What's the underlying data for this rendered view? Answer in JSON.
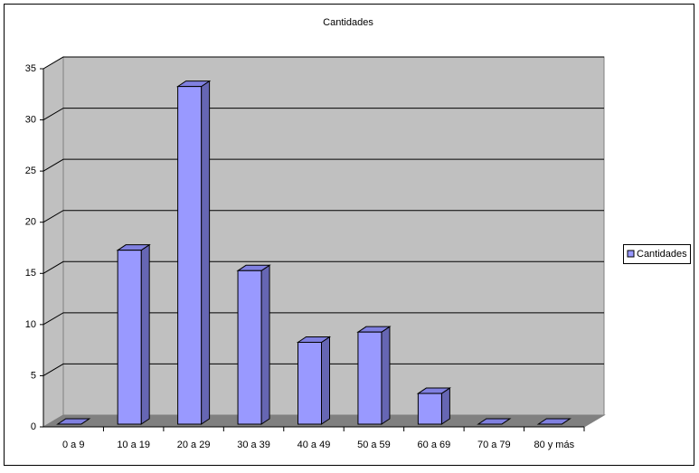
{
  "chart_data": {
    "type": "bar",
    "title": "Cantidades",
    "categories": [
      "0 a 9",
      "10 a 19",
      "20 a 29",
      "30 a 39",
      "40 a 49",
      "50 a 59",
      "60 a 69",
      "70 a 79",
      "80 y más"
    ],
    "series": [
      {
        "name": "Cantidades",
        "color": "#9999ff",
        "values": [
          0,
          17,
          33,
          15,
          8,
          9,
          3,
          0,
          0
        ]
      }
    ],
    "ylim": [
      0,
      35
    ],
    "yticks": [
      0,
      5,
      10,
      15,
      20,
      25,
      30,
      35
    ],
    "grid": true,
    "legend": "right"
  }
}
